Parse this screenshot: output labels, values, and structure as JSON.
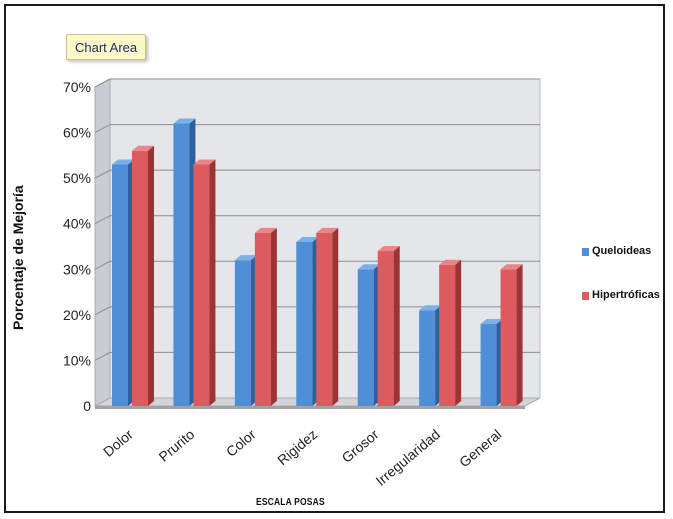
{
  "tooltip": {
    "label": "Chart Area"
  },
  "colors": {
    "queloideas": "#4f8fd8",
    "hipertroficas": "#dd5b5e"
  },
  "chart_data": {
    "type": "bar",
    "title": "",
    "xlabel": "ESCALA POSAS",
    "ylabel": "Porcentaje de Mejoría",
    "ylim": [
      0,
      70
    ],
    "yticks": [
      "0",
      "10%",
      "20%",
      "30%",
      "40%",
      "50%",
      "60%",
      "70%"
    ],
    "categories": [
      "Dolor",
      "Prurito",
      "Color",
      "Rigidez",
      "Grosor",
      "Irregularidad",
      "General"
    ],
    "series": [
      {
        "name": "Queloideas",
        "values": [
          53,
          62,
          32,
          36,
          30,
          21,
          18
        ]
      },
      {
        "name": "Hipertróficas",
        "values": [
          56,
          53,
          38,
          38,
          34,
          31,
          30
        ]
      }
    ],
    "legend_position": "right",
    "grid": true
  }
}
